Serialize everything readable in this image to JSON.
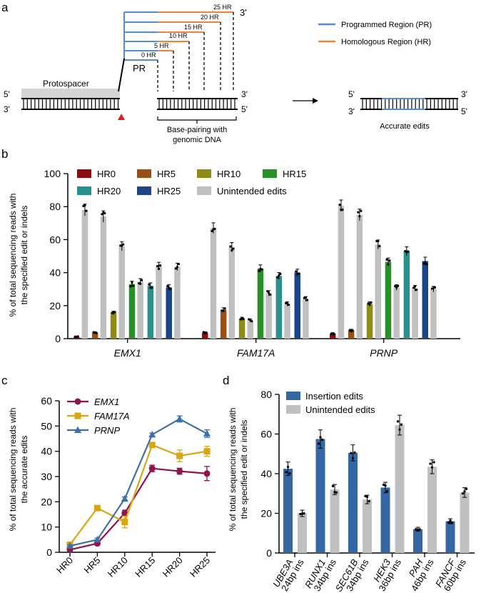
{
  "panel_labels": {
    "a": "a",
    "b": "b",
    "c": "c",
    "d": "d"
  },
  "colors": {
    "pr": "#4f8fd6",
    "hr": "#f0823c",
    "HR0": "#8b0d12",
    "HR5": "#9a4e12",
    "HR10": "#8f8c16",
    "HR15": "#279127",
    "HR20": "#2a908d",
    "HR25": "#1c4589",
    "unintended": "#c0c0c0",
    "emx1_line": "#8e1451",
    "fam17a_line": "#d9a60f",
    "prnp_line": "#3d70a8",
    "insertion": "#3567a2",
    "cut_marker": "#e41a1c"
  },
  "schematic": {
    "hr_labels": [
      "25 HR",
      "20 HR",
      "15 HR",
      "10 HR",
      "5 HR",
      "0 HR"
    ],
    "pr_label": "PR",
    "protospacer_label": "Protospacer",
    "end_5": "5'",
    "end_3": "3'",
    "basepair_label_line1": "Base-pairing with",
    "basepair_label_line2": "genomic DNA",
    "accurate_label": "Accurate edits",
    "legend_pr": "Programmed Region (PR)",
    "legend_hr": "Homologous Region (HR)"
  },
  "chart_data": [
    {
      "panel": "b",
      "type": "bar",
      "ylabel_line1": "% of total sequencing reads with",
      "ylabel_line2": "the specified edit or indels",
      "ylim": [
        0,
        100
      ],
      "yticks": [
        "0",
        "20",
        "40",
        "60",
        "80",
        "100"
      ],
      "groups": [
        "EMX1",
        "FAM17A",
        "PRNP"
      ],
      "series_order": [
        "HR0",
        "HR5",
        "HR10",
        "HR15",
        "HR20",
        "HR25"
      ],
      "legend_labels": [
        "HR0",
        "HR5",
        "HR10",
        "HR15",
        "HR20",
        "HR25",
        "Unintended edits"
      ],
      "legend_position": "top",
      "data": {
        "EMX1": {
          "HR0": {
            "value": 1,
            "unintended": 78
          },
          "HR5": {
            "value": 3.5,
            "unintended": 74
          },
          "HR10": {
            "value": 15.5,
            "unintended": 56
          },
          "HR15": {
            "value": 33,
            "unintended": 34.5
          },
          "HR20": {
            "value": 32,
            "unintended": 44
          },
          "HR25": {
            "value": 31,
            "unintended": 43.5
          }
        },
        "FAM17A": {
          "HR0": {
            "value": 3.5,
            "unintended": 67
          },
          "HR5": {
            "value": 17.5,
            "unintended": 55.5
          },
          "HR10": {
            "value": 12,
            "unintended": 11
          },
          "HR15": {
            "value": 42.5,
            "unintended": 27.5
          },
          "HR20": {
            "value": 38,
            "unintended": 21
          },
          "HR25": {
            "value": 40,
            "unintended": 24
          }
        },
        "PRNP": {
          "HR0": {
            "value": 3,
            "unintended": 80.5
          },
          "HR5": {
            "value": 5,
            "unintended": 75
          },
          "HR10": {
            "value": 21,
            "unintended": 57
          },
          "HR15": {
            "value": 46.5,
            "unintended": 31
          },
          "HR20": {
            "value": 53,
            "unintended": 30.5
          },
          "HR25": {
            "value": 47,
            "unintended": 30
          }
        }
      }
    },
    {
      "panel": "c",
      "type": "line",
      "ylabel_line1": "% of total sequencing reads with",
      "ylabel_line2": "the accurate edits",
      "ylim": [
        0,
        60
      ],
      "yticks": [
        "0",
        "10",
        "20",
        "30",
        "40",
        "50",
        "60"
      ],
      "categories": [
        "HR0",
        "HR5",
        "HR10",
        "HR15",
        "HR20",
        "HR25"
      ],
      "legend_position": "top-left",
      "series": [
        {
          "name": "EMX1",
          "marker": "circle",
          "values": [
            1,
            3.5,
            15.5,
            33.2,
            32.1,
            31.2
          ],
          "errors": [
            0.5,
            0.6,
            1.2,
            1.3,
            1.2,
            2.8
          ]
        },
        {
          "name": "FAM17A",
          "marker": "square",
          "values": [
            3,
            17.5,
            12,
            42.5,
            38.2,
            40
          ],
          "errors": [
            0.6,
            0.9,
            2.3,
            0.8,
            2.3,
            2
          ]
        },
        {
          "name": "PRNP",
          "marker": "triangle",
          "values": [
            2.5,
            5,
            21.2,
            46.6,
            52.8,
            47
          ],
          "errors": [
            0.5,
            0.6,
            0.7,
            0.6,
            1.2,
            1.5
          ]
        }
      ]
    },
    {
      "panel": "d",
      "type": "bar",
      "ylabel_line1": "% of total sequencing reads with",
      "ylabel_line2": "the specified edit or indels",
      "ylim": [
        0,
        80
      ],
      "yticks": [
        "0",
        "20",
        "40",
        "60",
        "80"
      ],
      "legend_labels": [
        "Insertion edits",
        "Unintended edits"
      ],
      "legend_position": "top-left",
      "categories": [
        {
          "gene": "UBE3A",
          "ins": "24bp ins"
        },
        {
          "gene": "RUNX1",
          "ins": "34bp ins"
        },
        {
          "gene": "SEC61B",
          "ins": "34bp ins"
        },
        {
          "gene": "HEK3",
          "ins": "36bp ins"
        },
        {
          "gene": "PAH",
          "ins": "46bp ins"
        },
        {
          "gene": "FANCF",
          "ins": "60bp ins"
        }
      ],
      "series": [
        {
          "name": "Insertion edits",
          "values": [
            42.5,
            57.5,
            50.5,
            33,
            12,
            16
          ]
        },
        {
          "name": "Unintended edits",
          "values": [
            20,
            32,
            27,
            64.5,
            43.5,
            30.5
          ]
        }
      ]
    }
  ]
}
